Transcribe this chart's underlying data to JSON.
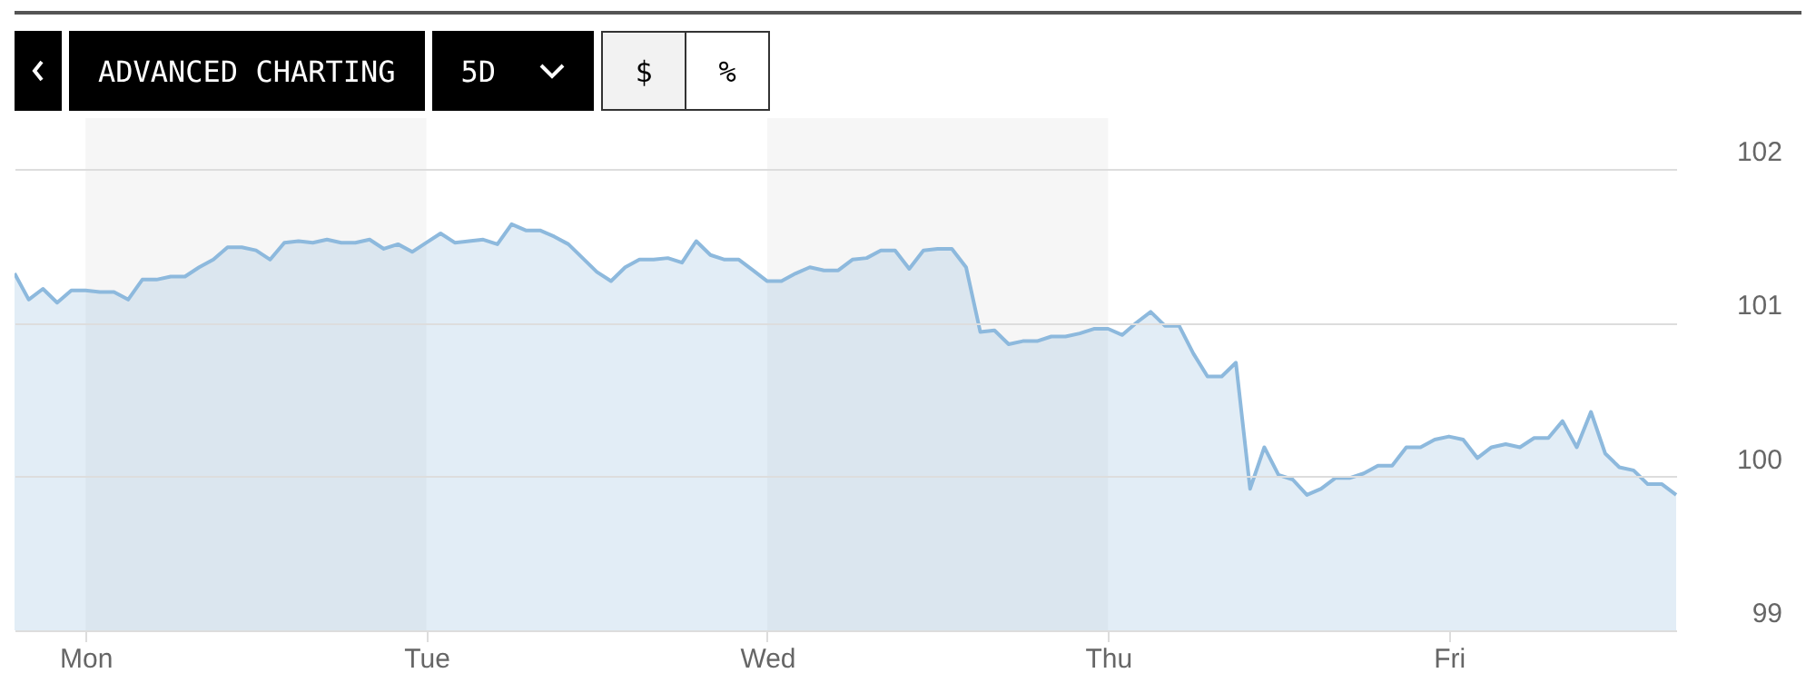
{
  "chart_data": {
    "type": "area",
    "categories": [
      null,
      null,
      null,
      null,
      null,
      "Mon",
      null,
      null,
      null,
      null,
      null,
      null,
      null,
      null,
      null,
      null,
      null,
      null,
      null,
      null,
      null,
      null,
      null,
      null,
      null,
      null,
      null,
      null,
      null,
      "Tue",
      null,
      null,
      null,
      null,
      null,
      null,
      null,
      null,
      null,
      null,
      null,
      null,
      null,
      null,
      null,
      null,
      null,
      null,
      null,
      null,
      null,
      null,
      null,
      "Wed",
      null,
      null,
      null,
      null,
      null,
      null,
      null,
      null,
      null,
      null,
      null,
      null,
      null,
      null,
      null,
      null,
      null,
      null,
      null,
      null,
      null,
      null,
      null,
      "Thu",
      null,
      null,
      null,
      null,
      null,
      null,
      null,
      null,
      null,
      null,
      null,
      null,
      null,
      null,
      null,
      null,
      null,
      null,
      null,
      null,
      null,
      null,
      null,
      "Fri",
      null,
      null,
      null,
      null,
      null,
      null,
      null,
      null,
      null,
      null,
      null,
      null,
      null,
      null,
      null,
      null
    ],
    "series": [
      {
        "color": "#8db9dd",
        "values": [
          101.32,
          101.15,
          101.22,
          101.13,
          101.21,
          101.21,
          101.2,
          101.2,
          101.15,
          101.28,
          101.28,
          101.3,
          101.3,
          101.36,
          101.41,
          101.49,
          101.49,
          101.47,
          101.41,
          101.52,
          101.53,
          101.52,
          101.54,
          101.52,
          101.52,
          101.54,
          101.48,
          101.51,
          101.46,
          101.52,
          101.58,
          101.52,
          101.53,
          101.54,
          101.51,
          101.64,
          101.6,
          101.6,
          101.56,
          101.51,
          101.42,
          101.33,
          101.27,
          101.36,
          101.41,
          101.41,
          101.42,
          101.39,
          101.53,
          101.44,
          101.41,
          101.41,
          101.34,
          101.27,
          101.27,
          101.32,
          101.36,
          101.34,
          101.34,
          101.41,
          101.42,
          101.47,
          101.47,
          101.35,
          101.47,
          101.48,
          101.48,
          101.36,
          100.94,
          100.95,
          100.86,
          100.88,
          100.88,
          100.91,
          100.91,
          100.93,
          100.96,
          100.96,
          100.92,
          101.0,
          101.07,
          100.98,
          100.98,
          100.8,
          100.65,
          100.65,
          100.74,
          99.92,
          100.19,
          100.01,
          99.98,
          99.88,
          99.92,
          99.99,
          99.99,
          100.02,
          100.07,
          100.07,
          100.19,
          100.19,
          100.24,
          100.26,
          100.24,
          100.12,
          100.19,
          100.21,
          100.19,
          100.25,
          100.25,
          100.36,
          100.19,
          100.42,
          100.15,
          100.06,
          100.04,
          99.95,
          99.95,
          99.88
        ]
      }
    ],
    "ylim": [
      99,
      102.33
    ],
    "yticks": [
      99,
      100,
      101,
      102
    ],
    "grid": "y",
    "bands": [
      {
        "axis": "x",
        "from": "Mon",
        "to": "Tue",
        "color": "#f6f6f6"
      },
      {
        "axis": "x",
        "from": "Wed",
        "to": "Thu",
        "color": "#f6f6f6"
      }
    ],
    "annotations": [
      "ADVANCED CHARTING",
      "5D",
      "$",
      "%"
    ]
  }
}
